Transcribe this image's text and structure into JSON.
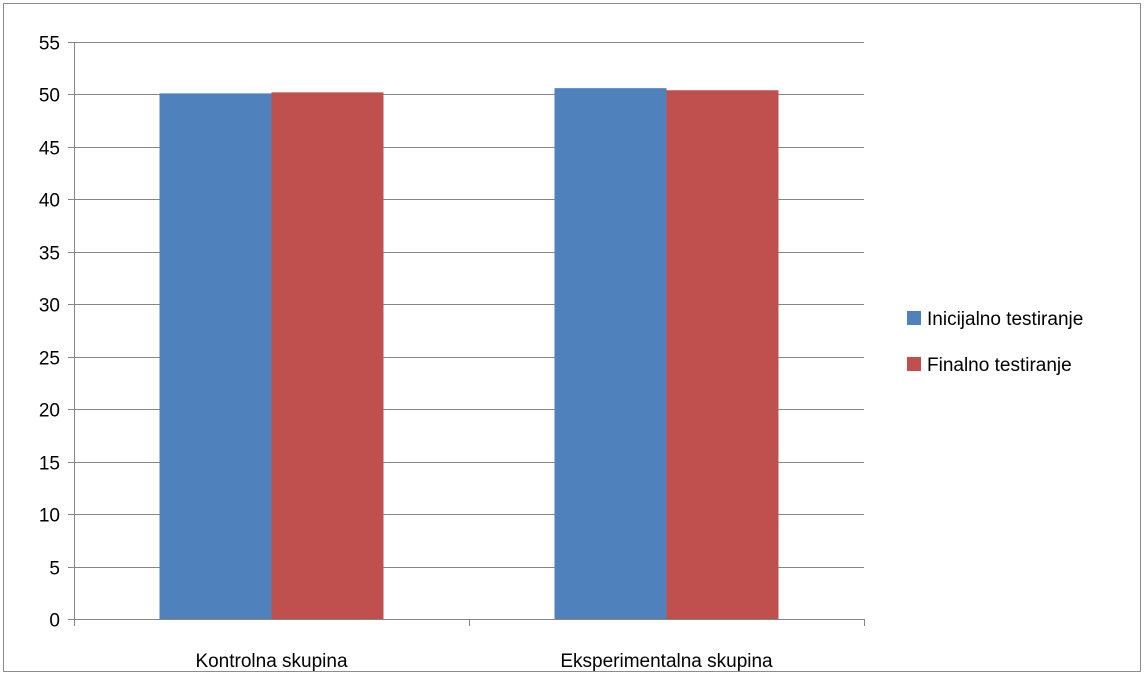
{
  "chart_data": {
    "type": "bar",
    "title": "",
    "xlabel": "",
    "ylabel": "",
    "categories": [
      "Kontrolna skupina",
      "Eksperimentalna skupina"
    ],
    "series": [
      {
        "name": "Inicijalno testiranje",
        "color": "#4f81bd",
        "values": [
          50.1,
          50.6
        ]
      },
      {
        "name": "Finalno testiranje",
        "color": "#c0504d",
        "values": [
          50.2,
          50.4
        ]
      }
    ],
    "ylim": [
      0,
      55
    ],
    "yticks": [
      0,
      5,
      10,
      15,
      20,
      25,
      30,
      35,
      40,
      45,
      50,
      55
    ],
    "grid": true,
    "legend_position": "right"
  }
}
